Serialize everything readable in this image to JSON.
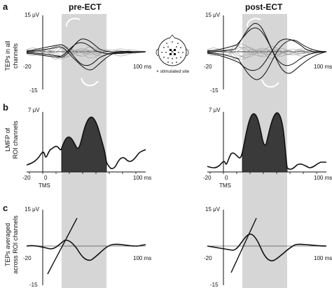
{
  "panels": {
    "a": "a",
    "b": "b",
    "c": "c"
  },
  "conditions": {
    "left": "pre-ECT",
    "right": "post-ECT"
  },
  "row_a": {
    "ylabel_line1": "TEPs in all",
    "ylabel_line2": "channels",
    "ytop": "15 μV",
    "yleft": "-20",
    "ybottom": "-15",
    "xend": "100 ms"
  },
  "row_b": {
    "ylabel_line1": "LMFP of",
    "ylabel_line2": "ROI channels",
    "ytop": "7 μV",
    "tick_neg20": "-20",
    "tick_0": "0",
    "xend": "100 ms",
    "tms": "TMS"
  },
  "row_c": {
    "ylabel_line1": "TEPs averaged",
    "ylabel_line2": "across ROI channels",
    "ytop": "15 μV",
    "yleft": "-20",
    "ybottom": "-15",
    "xend": "100 ms"
  },
  "head_map": {
    "legend": "× stimulated site"
  },
  "colors": {
    "shade": "#d6d6d6",
    "trace_black": "#111111",
    "trace_grey": "#9a9a9a",
    "fill_dark": "#3a3a3a"
  }
}
